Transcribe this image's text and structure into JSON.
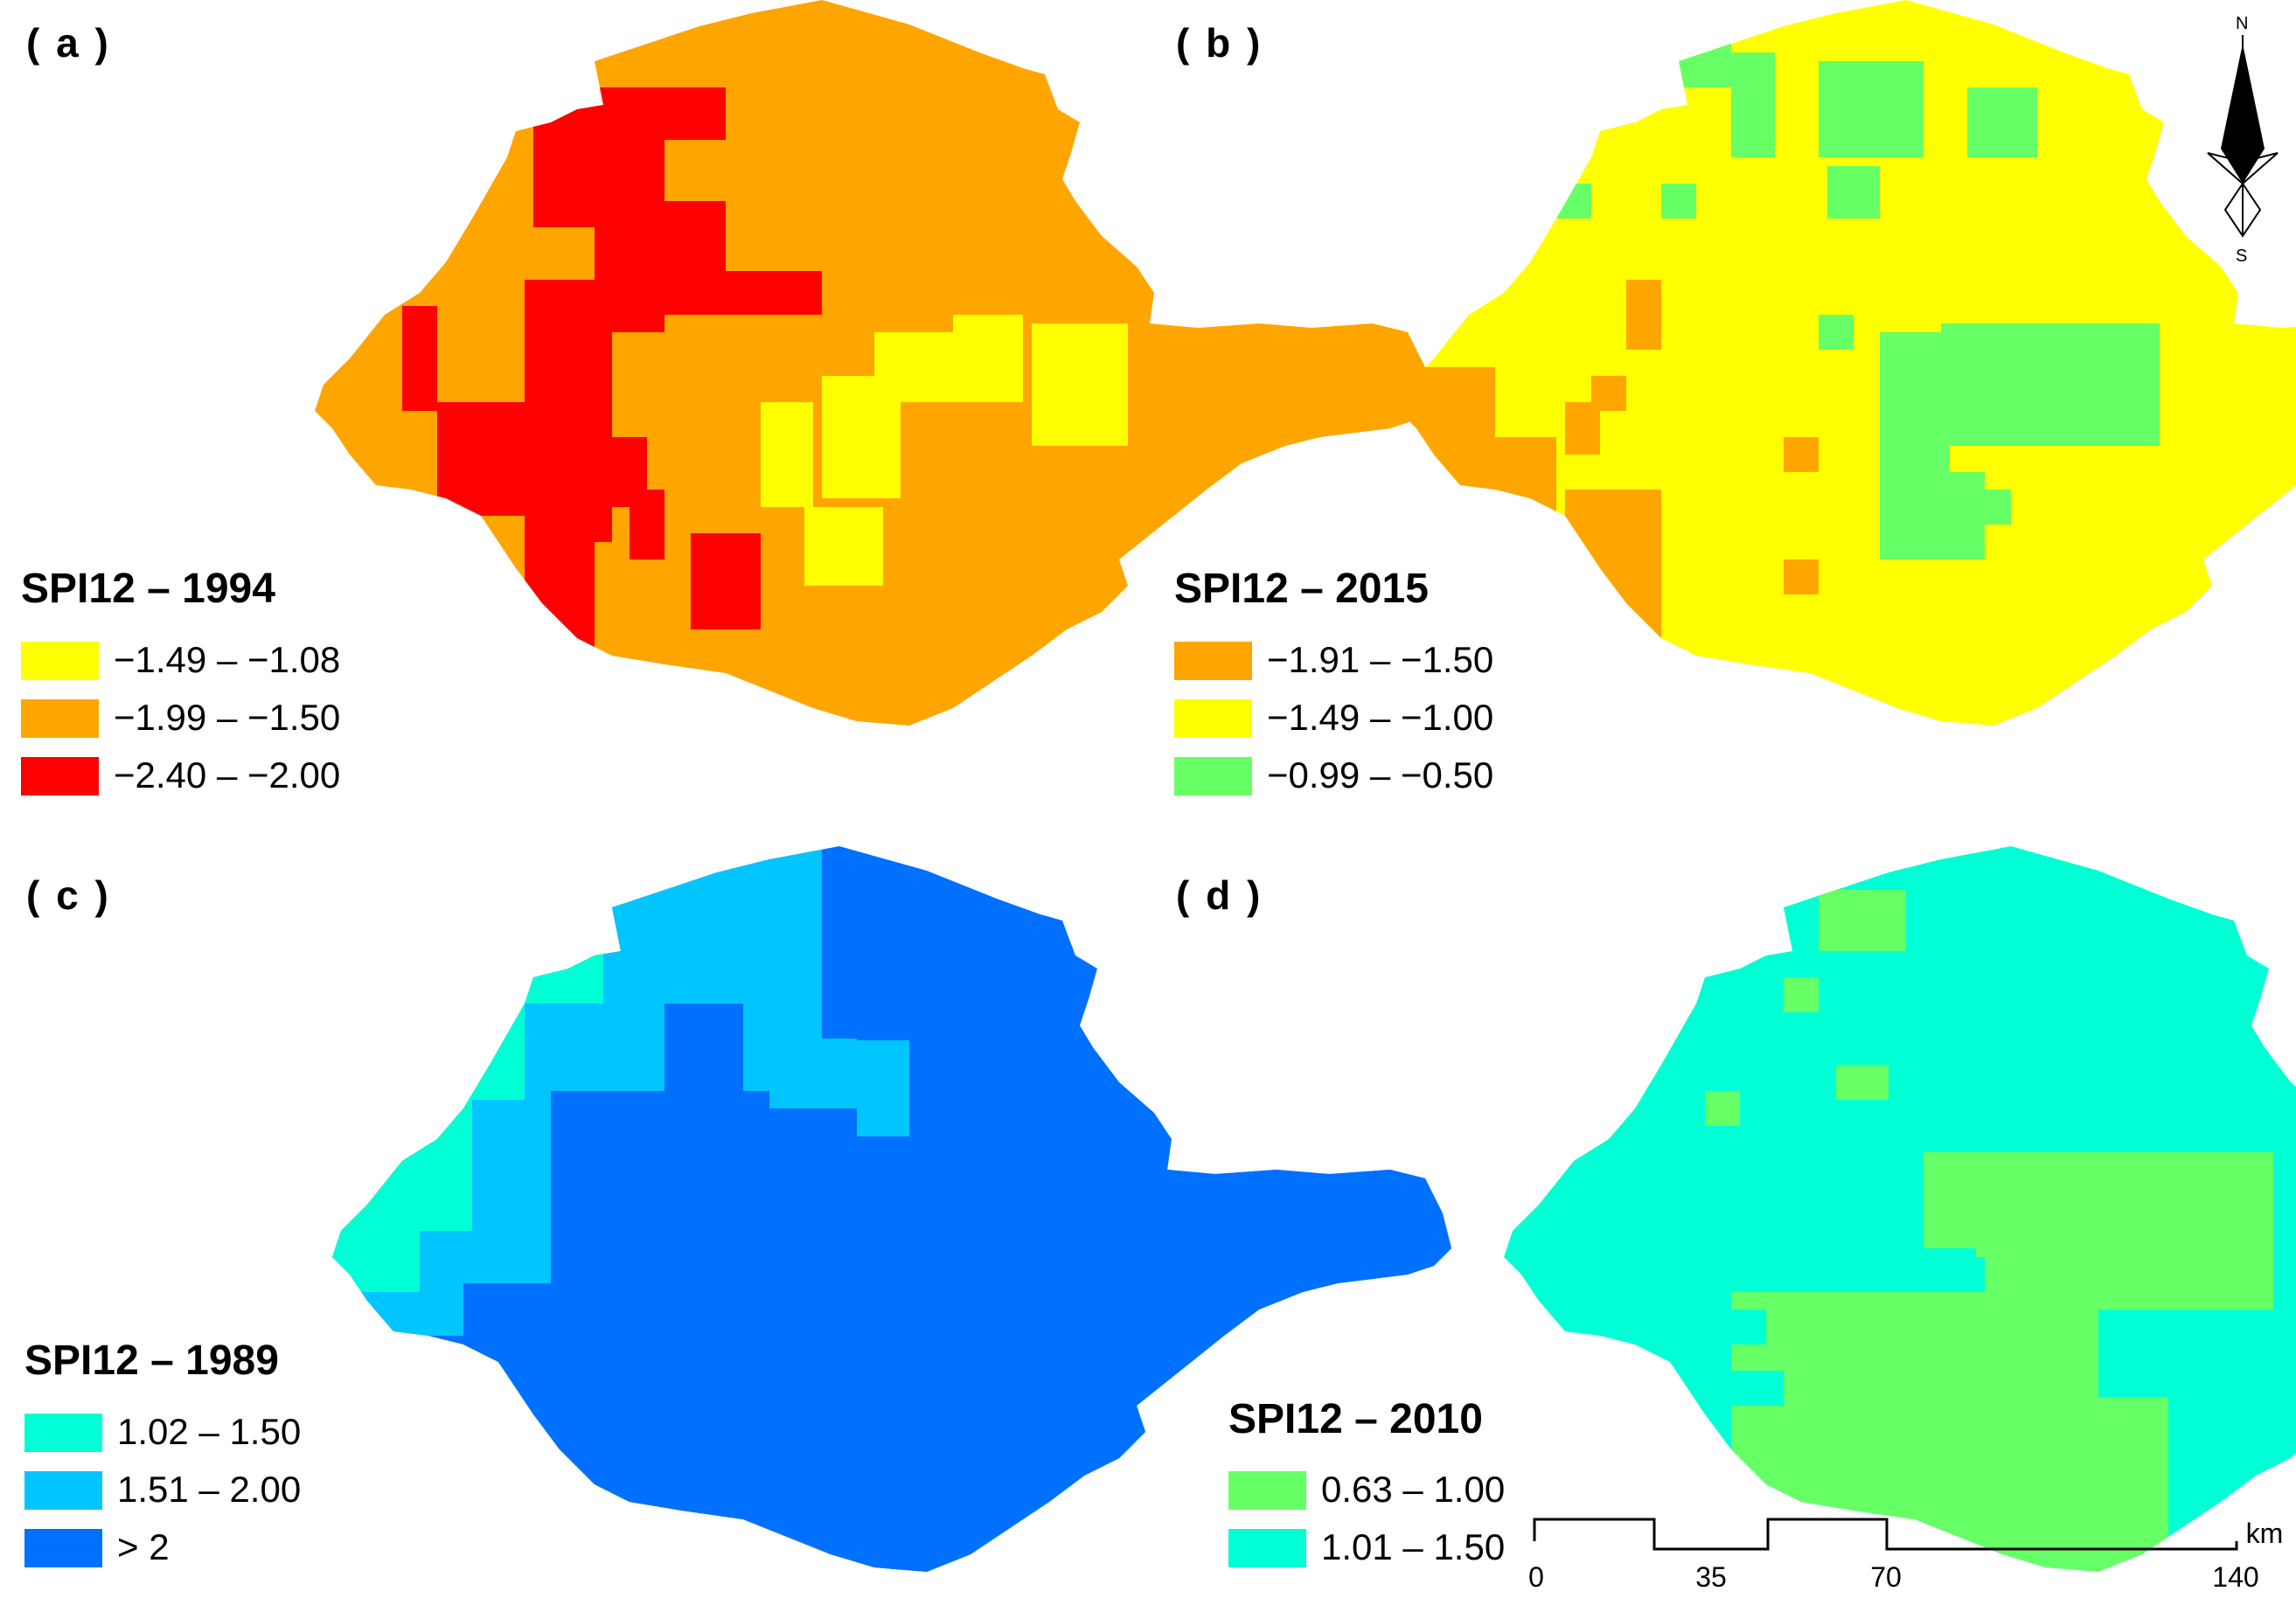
{
  "figure": {
    "panels": [
      {
        "id": "a",
        "label": "( a )",
        "title": "SPI12 – 1994",
        "base_color": "#FFA500",
        "legend": [
          {
            "range": "−1.49 – −1.08",
            "color": "#FFFF00"
          },
          {
            "range": "−1.99 – −1.50",
            "color": "#FFA500"
          },
          {
            "range": "−2.40 – −2.00",
            "color": "#FF0000"
          }
        ]
      },
      {
        "id": "b",
        "label": "( b )",
        "title": "SPI12 – 2015",
        "base_color": "#FFFF00",
        "legend": [
          {
            "range": "−1.91 – −1.50",
            "color": "#FFA500"
          },
          {
            "range": "−1.49 – −1.00",
            "color": "#FFFF00"
          },
          {
            "range": "−0.99 – −0.50",
            "color": "#66FF66"
          }
        ]
      },
      {
        "id": "c",
        "label": "( c )",
        "title": "SPI12 – 1989",
        "base_color": "#0070FF",
        "legend": [
          {
            "range": "1.02 – 1.50",
            "color": "#00FFD5"
          },
          {
            "range": "1.51 – 2.00",
            "color": "#00C5FF"
          },
          {
            "range": "> 2",
            "color": "#0070FF"
          }
        ]
      },
      {
        "id": "d",
        "label": "( d )",
        "title": "SPI12 – 2010",
        "base_color": "#00FFD5",
        "legend": [
          {
            "range": "0.63 – 1.00",
            "color": "#66FF66"
          },
          {
            "range": "1.01 – 1.50",
            "color": "#00FFD5"
          }
        ]
      }
    ],
    "north_arrow": {
      "north": "N",
      "south": "S"
    },
    "scale_bar": {
      "labels": [
        "0",
        "35",
        "70",
        "140"
      ],
      "unit": "km"
    }
  }
}
